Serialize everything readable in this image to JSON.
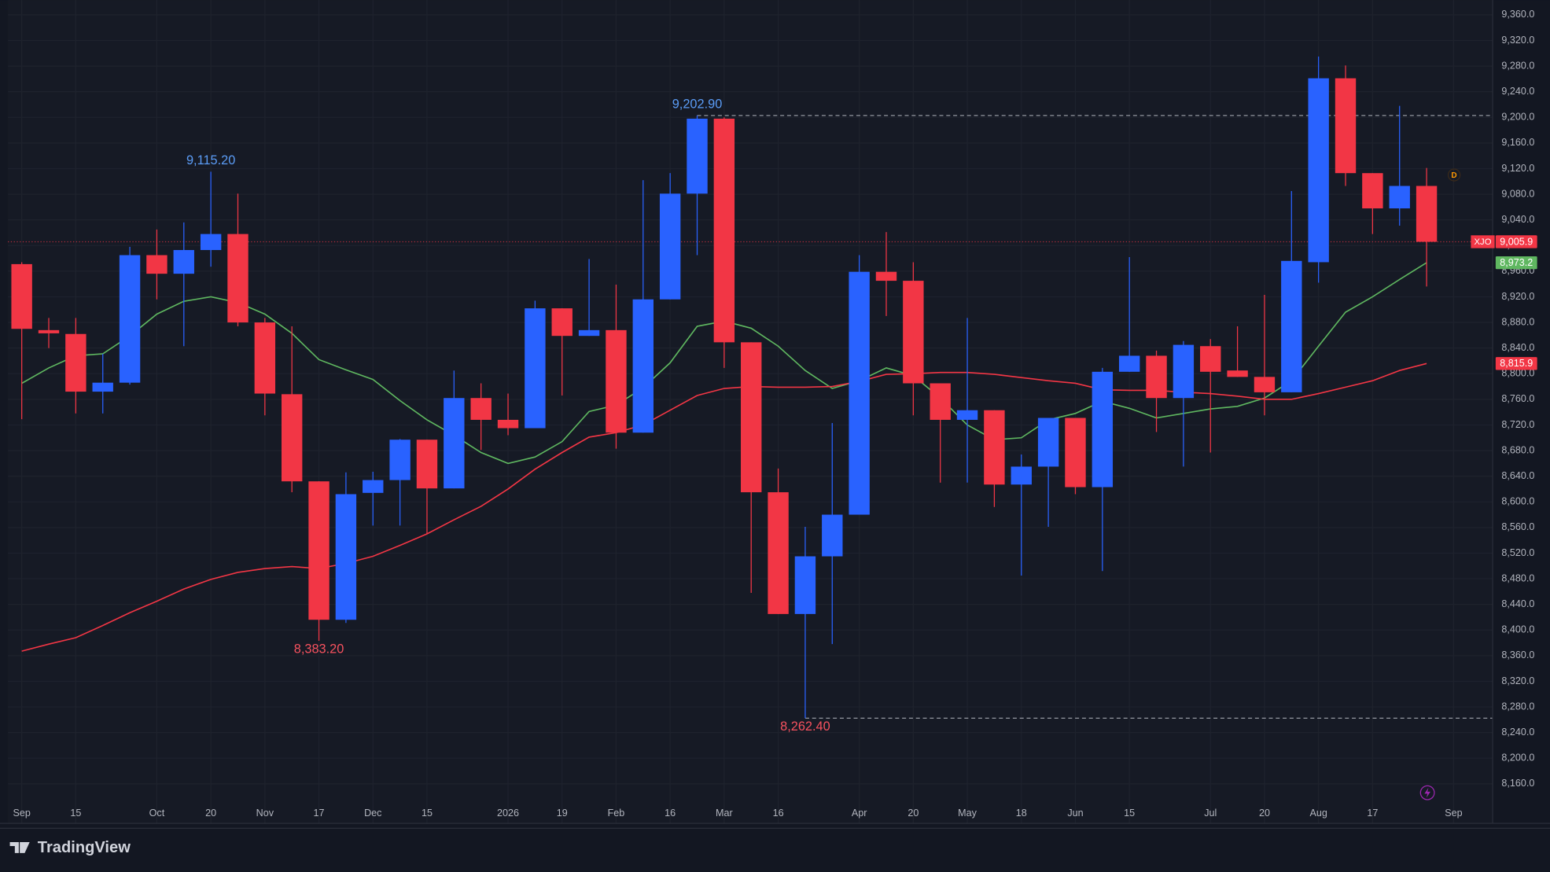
{
  "chart_data": {
    "type": "candlestick",
    "symbol": "XJO",
    "interval_marker": "D",
    "brand": "TradingView",
    "up_color": "#2962ff",
    "down_color": "#f23645",
    "last_label": "9,005.9",
    "last_line": true,
    "open": [
      8971,
      8868,
      8862,
      8772,
      8786,
      8985,
      8956,
      8993,
      9018,
      8880,
      8768,
      8632,
      8416,
      8614,
      8634,
      8697,
      8621,
      8762,
      8728,
      8715,
      8902,
      8859,
      8868,
      8708,
      8916,
      9081,
      9198,
      8849,
      8615,
      8425,
      8515,
      8580,
      8959,
      8945,
      8785,
      8728,
      8743,
      8627,
      8655,
      8731,
      8623,
      8803,
      8828,
      8762,
      8843,
      8805,
      8795,
      8771,
      8974,
      9261,
      9113,
      9058,
      9093
    ],
    "high": [
      8974,
      8887,
      8887,
      8831,
      8998,
      9025,
      9036,
      9115.2,
      9081,
      8887,
      8874,
      8632,
      8646,
      8647,
      8698,
      8697,
      8805,
      8785,
      8769,
      8914,
      8902,
      8979,
      8939,
      9102,
      9113,
      9202.9,
      9200,
      8849,
      8652,
      8561,
      8723,
      8985,
      9021,
      8974,
      8785,
      8887,
      8743,
      8674,
      8731,
      8728,
      8809,
      8982,
      8836,
      8851,
      8854,
      8874,
      8923,
      9085,
      9295,
      9281,
      9113,
      9218,
      9121
    ],
    "low": [
      8729,
      8840,
      8738,
      8738,
      8783,
      8916,
      8843,
      8967,
      8874,
      8735,
      8615,
      8383.2,
      8411,
      8563,
      8563,
      8550,
      8621,
      8681,
      8704,
      8715,
      8766,
      8859,
      8683,
      8708,
      8916,
      8985,
      8809,
      8458,
      8425,
      8262.4,
      8378,
      8580,
      8890,
      8735,
      8630,
      8630,
      8592,
      8485,
      8561,
      8612,
      8492,
      8803,
      8709,
      8655,
      8677,
      8795,
      8735,
      8771,
      8942,
      9093,
      9018,
      9031,
      8936
    ],
    "close": [
      8870,
      8863,
      8772,
      8786,
      8985,
      8956,
      8993,
      9018,
      8880,
      8769,
      8632,
      8416,
      8612,
      8634,
      8697,
      8621,
      8762,
      8728,
      8715,
      8902,
      8859,
      8868,
      8708,
      8916,
      9081,
      9198,
      8849,
      8615,
      8425,
      8515,
      8580,
      8959,
      8945,
      8785,
      8728,
      8743,
      8627,
      8655,
      8731,
      8623,
      8803,
      8828,
      8762,
      8845,
      8803,
      8795,
      8771,
      8976,
      9261,
      9113,
      9058,
      9093,
      9005.9
    ],
    "ma": [
      {
        "color": "#5fb760",
        "last_label": "8,973.2",
        "values": [
          8785,
          8809,
          8828,
          8831,
          8859,
          8893,
          8913,
          8920,
          8911,
          8893,
          8863,
          8822,
          8806,
          8791,
          8758,
          8728,
          8704,
          8677,
          8660,
          8670,
          8694,
          8741,
          8751,
          8778,
          8817,
          8874,
          8882,
          8871,
          8843,
          8805,
          8777,
          8789,
          8809,
          8797,
          8762,
          8720,
          8697,
          8700,
          8728,
          8738,
          8757,
          8746,
          8731,
          8738,
          8745,
          8749,
          8762,
          8789,
          8843,
          8896,
          8920,
          8947,
          8973.2
        ]
      },
      {
        "color": "#f23645",
        "last_label": "8,815.9",
        "values": [
          8367,
          8378,
          8388,
          8407,
          8427,
          8445,
          8464,
          8479,
          8490,
          8496,
          8499,
          8496,
          8504,
          8515,
          8532,
          8550,
          8572,
          8593,
          8620,
          8651,
          8677,
          8701,
          8708,
          8720,
          8743,
          8766,
          8777,
          8780,
          8779,
          8779,
          8780,
          8788,
          8799,
          8800,
          8802,
          8802,
          8799,
          8794,
          8789,
          8785,
          8775,
          8774,
          8774,
          8771,
          8769,
          8765,
          8760,
          8760,
          8769,
          8779,
          8789,
          8805,
          8815.9
        ]
      }
    ],
    "annotations": [
      {
        "value": 9115.2,
        "label": "9,115.20",
        "x": 7,
        "kind": "high",
        "line": false
      },
      {
        "value": 9202.9,
        "label": "9,202.90",
        "x": 25,
        "kind": "high",
        "line": true
      },
      {
        "value": 8383.2,
        "label": "8,383.20",
        "x": 11,
        "kind": "low",
        "line": false
      },
      {
        "value": 8262.4,
        "label": "8,262.40",
        "x": 29,
        "kind": "low",
        "line": true
      }
    ],
    "ylim": [
      8160,
      9360
    ],
    "yticks": [
      {
        "value": 8160,
        "label": "8,160.0"
      },
      {
        "value": 8200,
        "label": "8,200.0"
      },
      {
        "value": 8240,
        "label": "8,240.0"
      },
      {
        "value": 8280,
        "label": "8,280.0"
      },
      {
        "value": 8320,
        "label": "8,320.0"
      },
      {
        "value": 8360,
        "label": "8,360.0"
      },
      {
        "value": 8400,
        "label": "8,400.0"
      },
      {
        "value": 8440,
        "label": "8,440.0"
      },
      {
        "value": 8480,
        "label": "8,480.0"
      },
      {
        "value": 8520,
        "label": "8,520.0"
      },
      {
        "value": 8560,
        "label": "8,560.0"
      },
      {
        "value": 8600,
        "label": "8,600.0"
      },
      {
        "value": 8640,
        "label": "8,640.0"
      },
      {
        "value": 8680,
        "label": "8,680.0"
      },
      {
        "value": 8720,
        "label": "8,720.0"
      },
      {
        "value": 8760,
        "label": "8,760.0"
      },
      {
        "value": 8800,
        "label": "8,800.0"
      },
      {
        "value": 8840,
        "label": "8,840.0"
      },
      {
        "value": 8880,
        "label": "8,880.0"
      },
      {
        "value": 8920,
        "label": "8,920.0"
      },
      {
        "value": 8960,
        "label": "8,960.0"
      },
      {
        "value": 9000,
        "label": "9,000.0"
      },
      {
        "value": 9040,
        "label": "9,040.0"
      },
      {
        "value": 9080,
        "label": "9,080.0"
      },
      {
        "value": 9120,
        "label": "9,120.0"
      },
      {
        "value": 9160,
        "label": "9,160.0"
      },
      {
        "value": 9200,
        "label": "9,200.0"
      },
      {
        "value": 9240,
        "label": "9,240.0"
      },
      {
        "value": 9280,
        "label": "9,280.0"
      },
      {
        "value": 9320,
        "label": "9,320.0"
      },
      {
        "value": 9360,
        "label": "9,360.0"
      }
    ],
    "xticks": [
      {
        "value": 0,
        "label": "Sep"
      },
      {
        "value": 2,
        "label": "15"
      },
      {
        "value": 5,
        "label": "Oct"
      },
      {
        "value": 7,
        "label": "20"
      },
      {
        "value": 9,
        "label": "Nov"
      },
      {
        "value": 11,
        "label": "17"
      },
      {
        "value": 13,
        "label": "Dec"
      },
      {
        "value": 15,
        "label": "15"
      },
      {
        "value": 18,
        "label": "2026"
      },
      {
        "value": 20,
        "label": "19"
      },
      {
        "value": 22,
        "label": "Feb"
      },
      {
        "value": 24,
        "label": "16"
      },
      {
        "value": 26,
        "label": "Mar"
      },
      {
        "value": 28,
        "label": "16"
      },
      {
        "value": 31,
        "label": "Apr"
      },
      {
        "value": 33,
        "label": "20"
      },
      {
        "value": 35,
        "label": "May"
      },
      {
        "value": 37,
        "label": "18"
      },
      {
        "value": 39,
        "label": "Jun"
      },
      {
        "value": 41,
        "label": "15"
      },
      {
        "value": 44,
        "label": "Jul"
      },
      {
        "value": 46,
        "label": "20"
      },
      {
        "value": 48,
        "label": "Aug"
      },
      {
        "value": 50,
        "label": "17"
      },
      {
        "value": 53,
        "label": "Sep"
      }
    ],
    "grid": true
  }
}
